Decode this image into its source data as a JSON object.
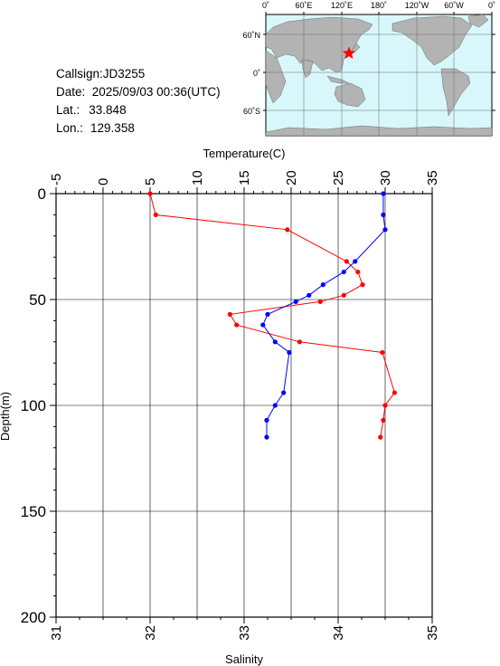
{
  "station": {
    "callsign": "Callsign:JD3255",
    "date": "Date:  2025/09/03 00:36(UTC)",
    "lat_label": "Lat.:",
    "lat": "33.848",
    "lon_label": "Lon.:",
    "lon": "129.358"
  },
  "map": {
    "top_ticks": [
      "0˚",
      "60˚E",
      "120˚E",
      "180˚",
      "120˚W",
      "60˚W",
      "0˚"
    ],
    "left_ticks": [
      "60˚N",
      "0˚",
      "60˚S"
    ],
    "land_color": "#b3b3b3",
    "ocean_color": "#d8f7fb",
    "marker_color": "#ff0000"
  },
  "chart_data": {
    "type": "line",
    "title": "",
    "top_axis": {
      "label": "Temperature(C)",
      "min": -5,
      "max": 35,
      "ticks": [
        -5,
        0,
        5,
        10,
        15,
        20,
        25,
        30,
        35
      ]
    },
    "bottom_axis": {
      "label": "Salinity",
      "min": 31,
      "max": 35,
      "ticks": [
        31,
        32,
        33,
        34,
        35
      ]
    },
    "y_axis": {
      "label": "Depth(m)",
      "min": 0,
      "max": 200,
      "inverted": true,
      "ticks": [
        0,
        50,
        100,
        150,
        200
      ]
    },
    "grid": true,
    "series": [
      {
        "quantity": "temperature",
        "axis": "top",
        "color": "#ff0000",
        "depth": [
          0,
          10,
          17,
          32,
          37,
          43,
          48,
          51,
          57,
          62,
          70,
          75,
          94,
          100,
          107,
          115
        ],
        "values": [
          5.0,
          5.6,
          19.6,
          25.9,
          27.1,
          27.6,
          25.6,
          23.1,
          13.5,
          14.2,
          20.9,
          29.7,
          31.0,
          30.0,
          29.8,
          29.5
        ]
      },
      {
        "quantity": "salinity",
        "axis": "bottom",
        "color": "#0000ff",
        "depth": [
          0,
          10,
          17,
          32,
          37,
          43,
          48,
          51,
          57,
          62,
          70,
          75,
          94,
          100,
          107,
          115
        ],
        "values": [
          34.48,
          34.48,
          34.5,
          34.18,
          34.06,
          33.84,
          33.69,
          33.55,
          33.25,
          33.2,
          33.33,
          33.48,
          33.42,
          33.33,
          33.24,
          33.24
        ]
      }
    ]
  }
}
